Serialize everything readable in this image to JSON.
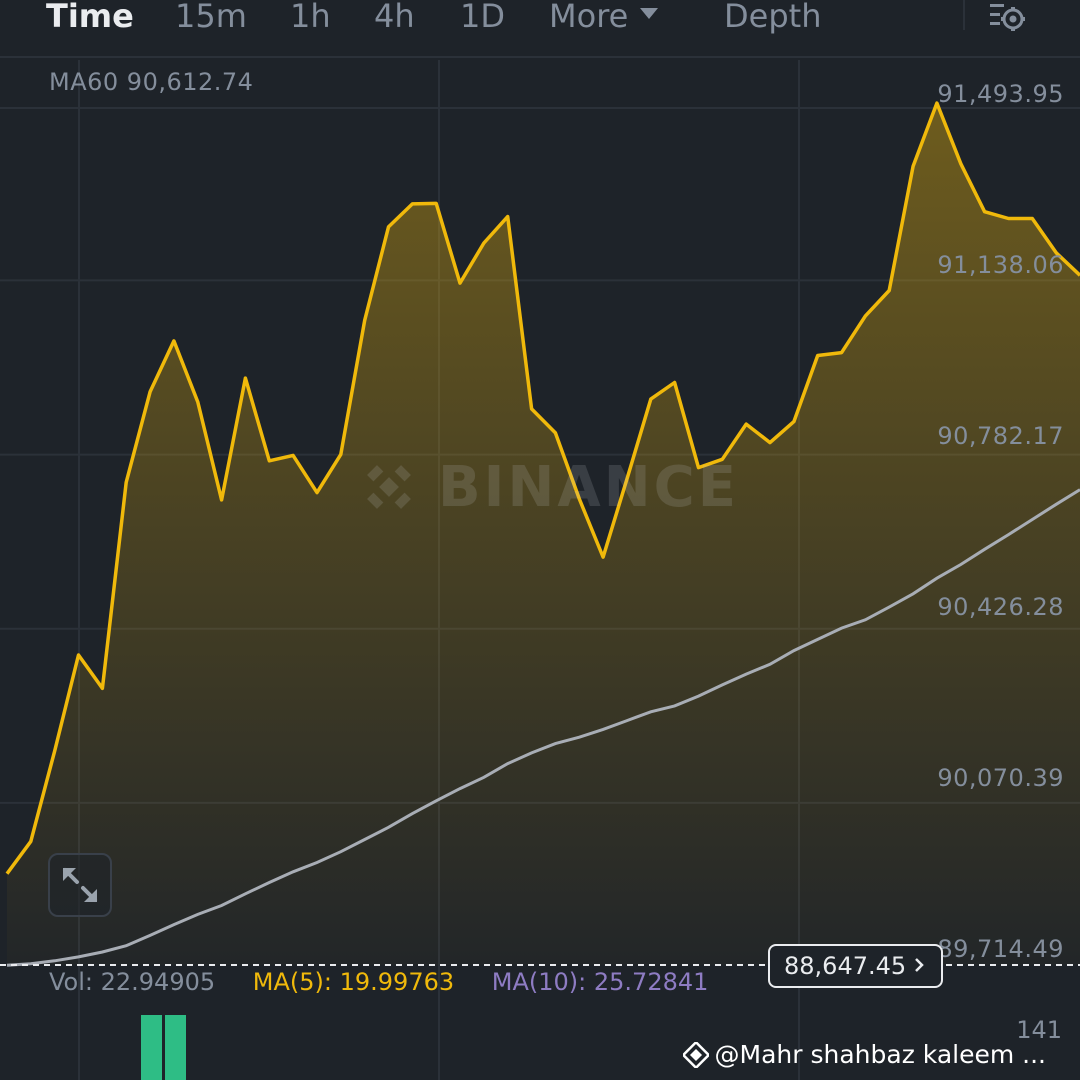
{
  "tabs": [
    {
      "label": "Time",
      "active": true
    },
    {
      "label": "15m",
      "active": false
    },
    {
      "label": "1h",
      "active": false
    },
    {
      "label": "4h",
      "active": false
    },
    {
      "label": "1D",
      "active": false
    },
    {
      "label": "More",
      "active": false
    },
    {
      "label": "Depth",
      "active": false
    }
  ],
  "settings_icon": "chart-settings-icon",
  "indicator": {
    "ma60_label": "MA60 90,612.74"
  },
  "price_axis_ticks": [
    "91,493.95",
    "91,138.06",
    "90,782.17",
    "90,426.28",
    "90,070.39",
    "89,714.49"
  ],
  "watermark": {
    "text": "BINANCE",
    "icon": "binance-logo-icon"
  },
  "expand_icon": "expand-arrows-icon",
  "last_price": {
    "value": "88,647.45",
    "icon": "chevron-right-icon"
  },
  "volume": {
    "vol_label": "Vol: 22.94905",
    "ma5_label": "MA(5): 19.99763",
    "ma10_label": "MA(10): 25.72841",
    "max_tick": "141"
  },
  "credit": {
    "text": "@Mahr shahbaz kaleem ...",
    "icon": "binance-diamond-icon"
  },
  "colors": {
    "background": "#1e2329",
    "price_line": "#f0b90b",
    "ma60_line": "#a8adb5",
    "axis_text": "#848e9c",
    "volume_up": "#2ebd85",
    "ma10": "#8e7cc3"
  },
  "chart_data": {
    "type": "area",
    "ylim": [
      89714.49,
      91564
    ],
    "yticks": [
      91493.95,
      91138.06,
      90782.17,
      90426.28,
      90070.39,
      89714.49
    ],
    "series": [
      {
        "values": [
          89901,
          89967,
          90152,
          90348,
          90280,
          90701,
          90886,
          90990,
          90865,
          90665,
          90914,
          90745,
          90756,
          90680,
          90758,
          91032,
          91223,
          91270,
          91271,
          91108,
          91190,
          91244,
          90851,
          90802,
          90667,
          90548,
          90708,
          90871,
          90905,
          90731,
          90748,
          90820,
          90782,
          90825,
          90960,
          90966,
          91041,
          91093,
          91347,
          91476,
          91352,
          91254,
          91240,
          91240,
          91170,
          91124
        ]
      },
      {
        "name": "MA60",
        "values": [
          89714,
          89717,
          89723,
          89731,
          89741,
          89754,
          89775,
          89797,
          89818,
          89836,
          89860,
          89883,
          89905,
          89924,
          89946,
          89971,
          89996,
          90024,
          90050,
          90075,
          90098,
          90126,
          90148,
          90167,
          90180,
          90196,
          90214,
          90232,
          90244,
          90264,
          90287,
          90309,
          90329,
          90357,
          90380,
          90403,
          90420,
          90446,
          90473,
          90505,
          90533,
          90564,
          90594,
          90625,
          90656,
          90686
        ]
      }
    ],
    "volume": {
      "max": 141,
      "visible_bars": [
        110,
        137
      ]
    }
  }
}
